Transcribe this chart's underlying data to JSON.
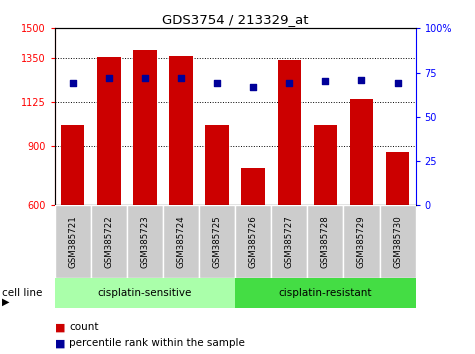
{
  "title": "GDS3754 / 213329_at",
  "samples": [
    "GSM385721",
    "GSM385722",
    "GSM385723",
    "GSM385724",
    "GSM385725",
    "GSM385726",
    "GSM385727",
    "GSM385728",
    "GSM385729",
    "GSM385730"
  ],
  "bar_values": [
    1010,
    1355,
    1390,
    1360,
    1010,
    790,
    1340,
    1010,
    1140,
    870
  ],
  "percentile_values": [
    69,
    72,
    72,
    72,
    69,
    67,
    69,
    70,
    71,
    69
  ],
  "ylim_left": [
    600,
    1500
  ],
  "ylim_right": [
    0,
    100
  ],
  "yticks_left": [
    600,
    900,
    1125,
    1350,
    1500
  ],
  "ytick_labels_left": [
    "600",
    "900",
    "1125",
    "1350",
    "1500"
  ],
  "ytick_vals_right": [
    0,
    25,
    50,
    75,
    100
  ],
  "ytick_labels_right": [
    "0",
    "25",
    "50",
    "75",
    "100%"
  ],
  "bar_color": "#cc0000",
  "dot_color": "#000099",
  "group1_label": "cisplatin-sensitive",
  "group2_label": "cisplatin-resistant",
  "group1_count": 5,
  "group2_count": 5,
  "group1_color": "#aaffaa",
  "group2_color": "#44dd44",
  "cell_line_label": "cell line",
  "legend_count_label": "count",
  "legend_percentile_label": "percentile rank within the sample",
  "tick_area_color": "#cccccc",
  "gridline_yticks": [
    900,
    1125,
    1350
  ]
}
